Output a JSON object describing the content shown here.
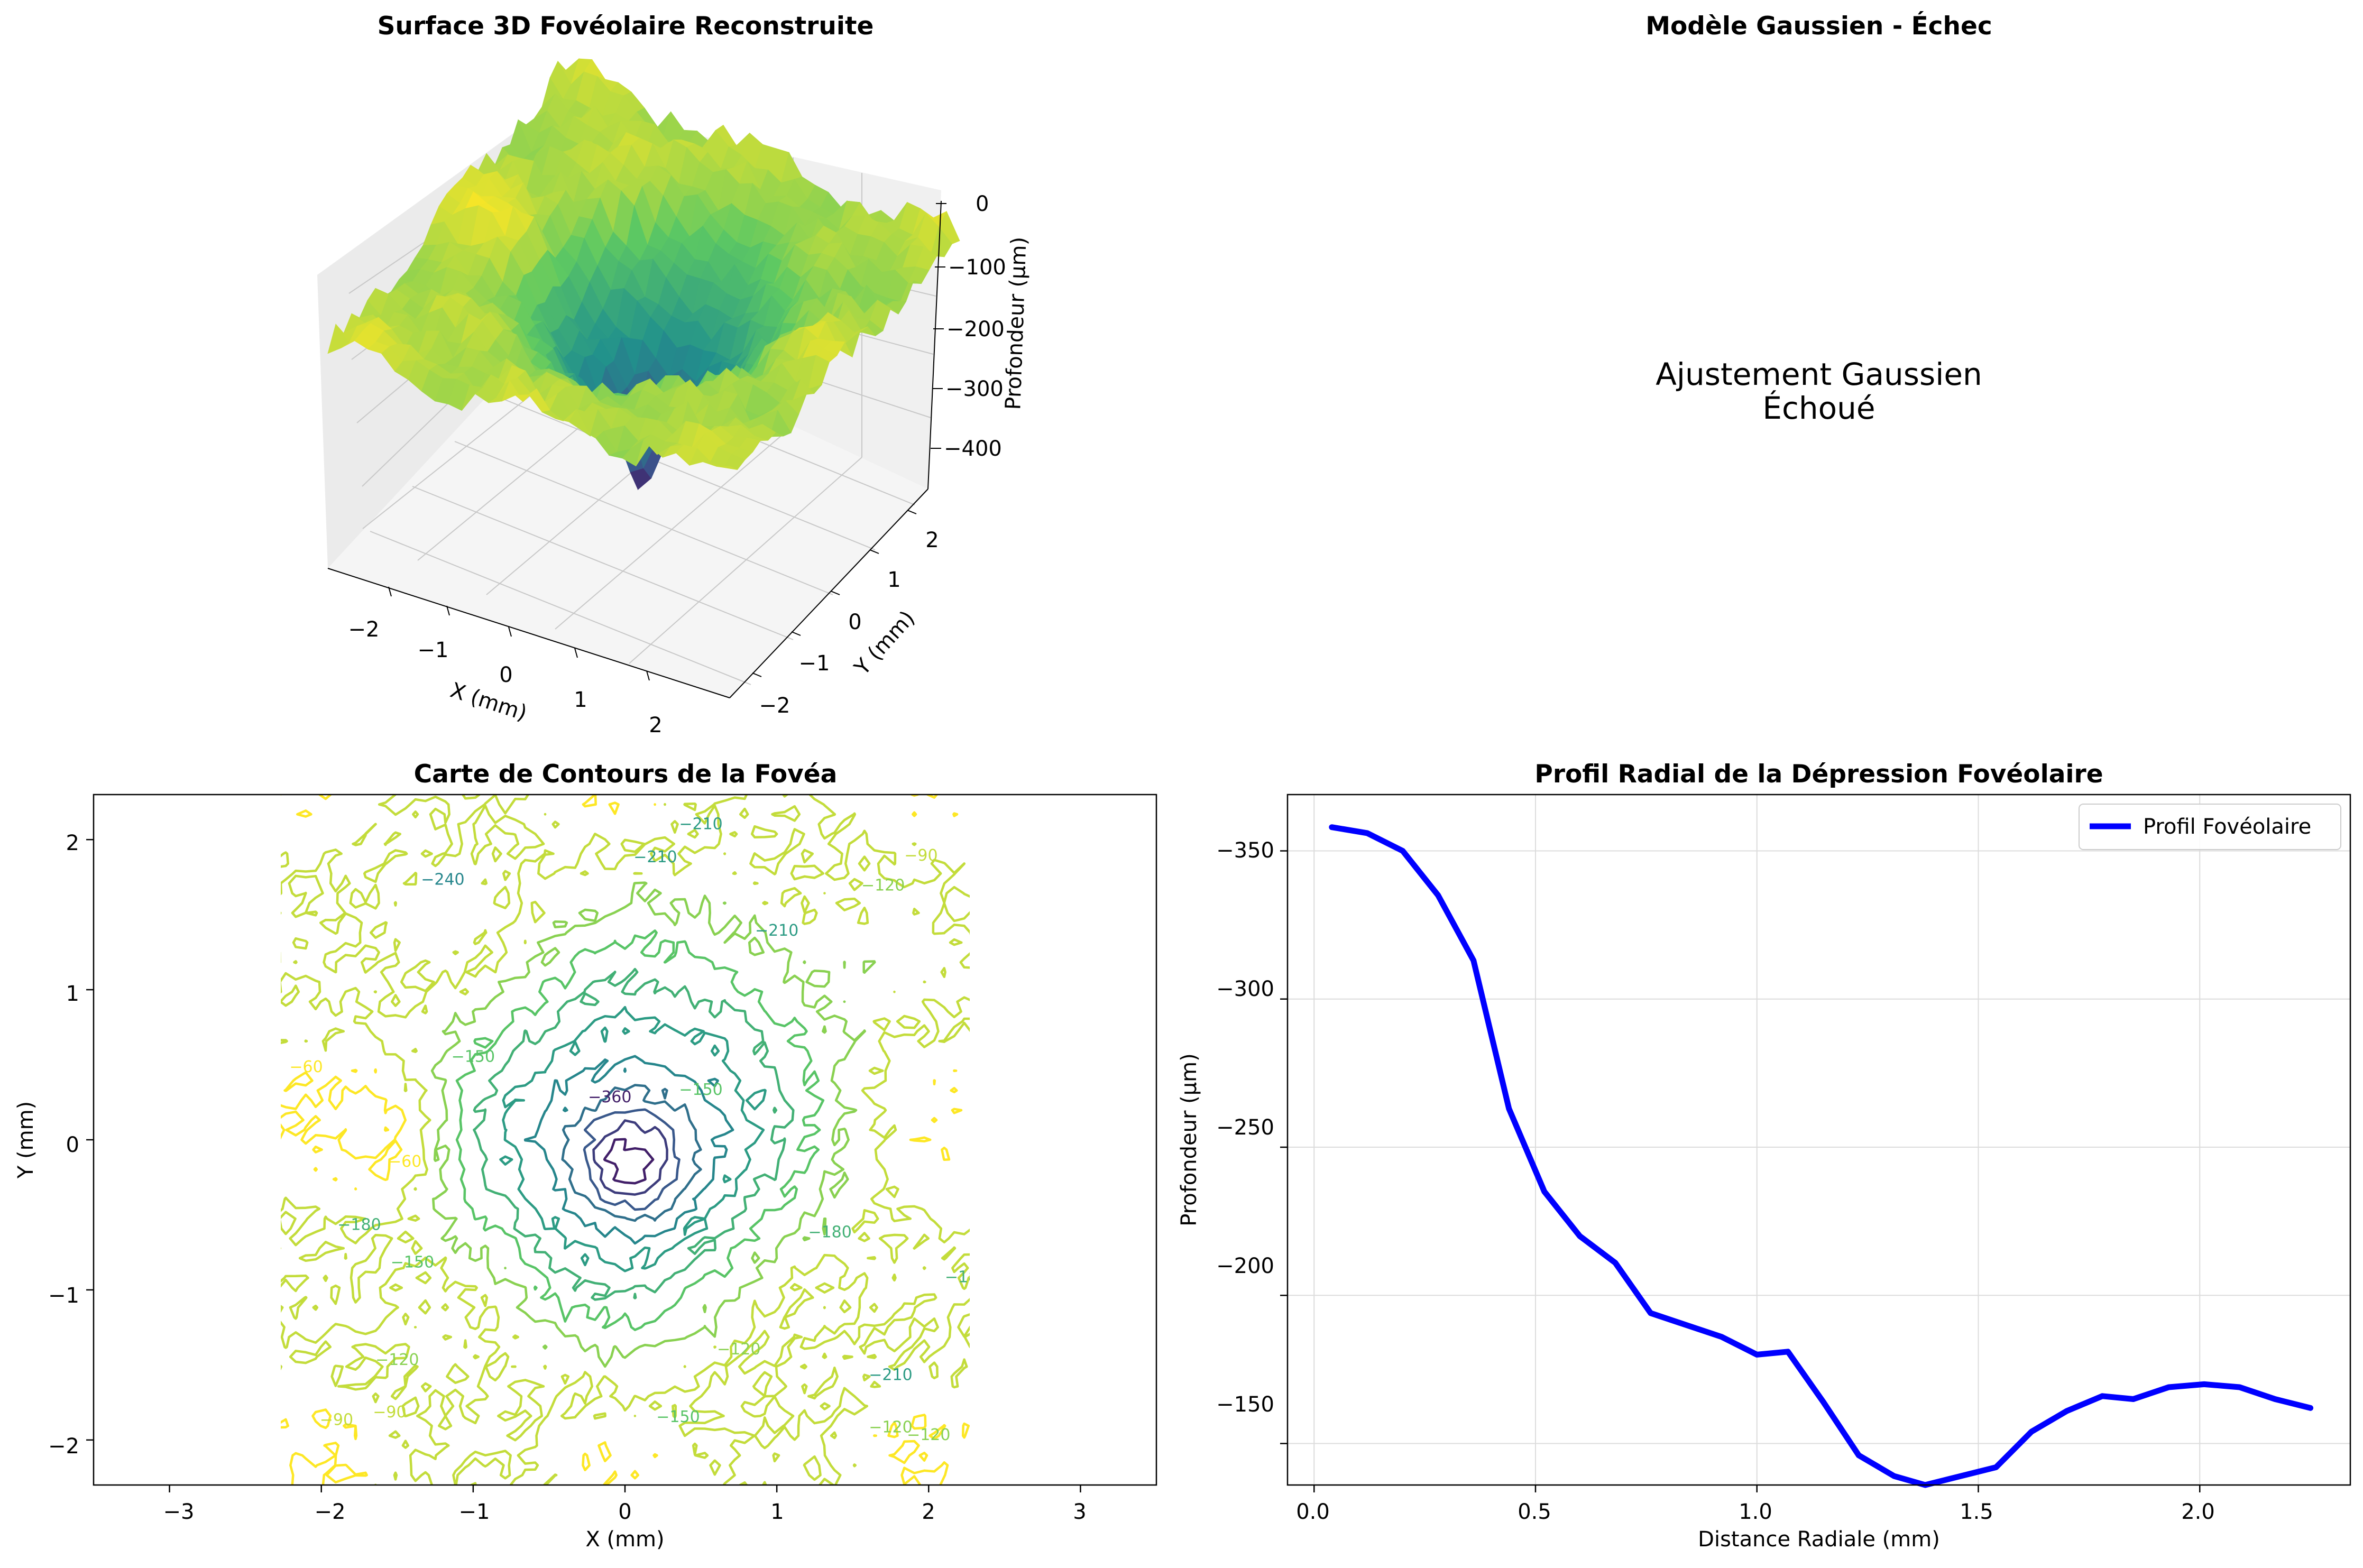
{
  "chart_data": [
    {
      "type": "surface3d",
      "title": "Surface 3D Fovéolaire Reconstruite",
      "xlabel": "X (mm)",
      "ylabel": "Y (mm)",
      "zlabel": "Profondeur (µm)",
      "xticks": [
        "−2",
        "−1",
        "0",
        "1",
        "2"
      ],
      "yticks": [
        "−2",
        "−1",
        "0",
        "1",
        "2"
      ],
      "zticks": [
        "0",
        "−100",
        "−200",
        "−300",
        "−400"
      ],
      "xlim": [
        -2.3,
        2.3
      ],
      "ylim": [
        -2.3,
        2.3
      ],
      "zlim": [
        -450,
        0
      ],
      "colormap": "viridis",
      "z_range": [
        -420,
        -40
      ]
    },
    {
      "type": "text",
      "title": "Modèle Gaussien - Échec",
      "message_lines": [
        "Ajustement Gaussien",
        "Échoué"
      ]
    },
    {
      "type": "contour",
      "title": "Carte de Contours de la Fovéa",
      "xlabel": "X (mm)",
      "ylabel": "Y (mm)",
      "xticks": [
        "−3",
        "−2",
        "−1",
        "0",
        "1",
        "2",
        "3"
      ],
      "yticks": [
        "−2",
        "−1",
        "0",
        "1",
        "2"
      ],
      "xlim": [
        -3.5,
        3.5
      ],
      "ylim": [
        -2.3,
        2.3
      ],
      "colormap": "viridis",
      "levels": [
        -60,
        -90,
        -120,
        -150,
        -180,
        -210,
        -240,
        -270,
        -300,
        -330,
        -360,
        -390
      ],
      "contour_labels": [
        "−210",
        "−210",
        "−210",
        "−240",
        "−90",
        "−120",
        "−60",
        "−60",
        "−150",
        "−360",
        "−150",
        "−180",
        "−180",
        "−120",
        "−120",
        "−90",
        "−90",
        "−120",
        "−150",
        "−180",
        "−210",
        "−150",
        "−120"
      ]
    },
    {
      "type": "line",
      "title": "Profil Radial de la Dépression Fovéolaire",
      "xlabel": "Distance Radiale (mm)",
      "ylabel": "Profondeur (µm)",
      "xticks": [
        "0.0",
        "0.5",
        "1.0",
        "1.5",
        "2.0"
      ],
      "yticks": [
        "−350",
        "−300",
        "−250",
        "−200",
        "−150"
      ],
      "xlim": [
        -0.06,
        2.34
      ],
      "ylim": [
        -369,
        -136
      ],
      "y_inverted": true,
      "grid": true,
      "legend": "top-right",
      "series": [
        {
          "name": "Profil Fovéolaire",
          "color": "#0000ff",
          "x": [
            0.04,
            0.12,
            0.2,
            0.28,
            0.36,
            0.44,
            0.52,
            0.6,
            0.68,
            0.76,
            0.84,
            0.92,
            1.0,
            1.07,
            1.15,
            1.23,
            1.31,
            1.38,
            1.46,
            1.54,
            1.62,
            1.7,
            1.78,
            1.85,
            1.93,
            2.01,
            2.09,
            2.17,
            2.25
          ],
          "y": [
            -358,
            -356,
            -350,
            -335,
            -313,
            -263,
            -235,
            -220,
            -211,
            -194,
            -190,
            -186,
            -180,
            -181,
            -164,
            -146,
            -139,
            -136,
            -139,
            -142,
            -154,
            -161,
            -166,
            -165,
            -169,
            -170,
            -169,
            -165,
            -162
          ]
        }
      ]
    }
  ],
  "colors": {
    "line": "#0000ff",
    "viridis_dark": "#440154",
    "viridis_mid": "#21918c",
    "viridis_light": "#fde725"
  }
}
